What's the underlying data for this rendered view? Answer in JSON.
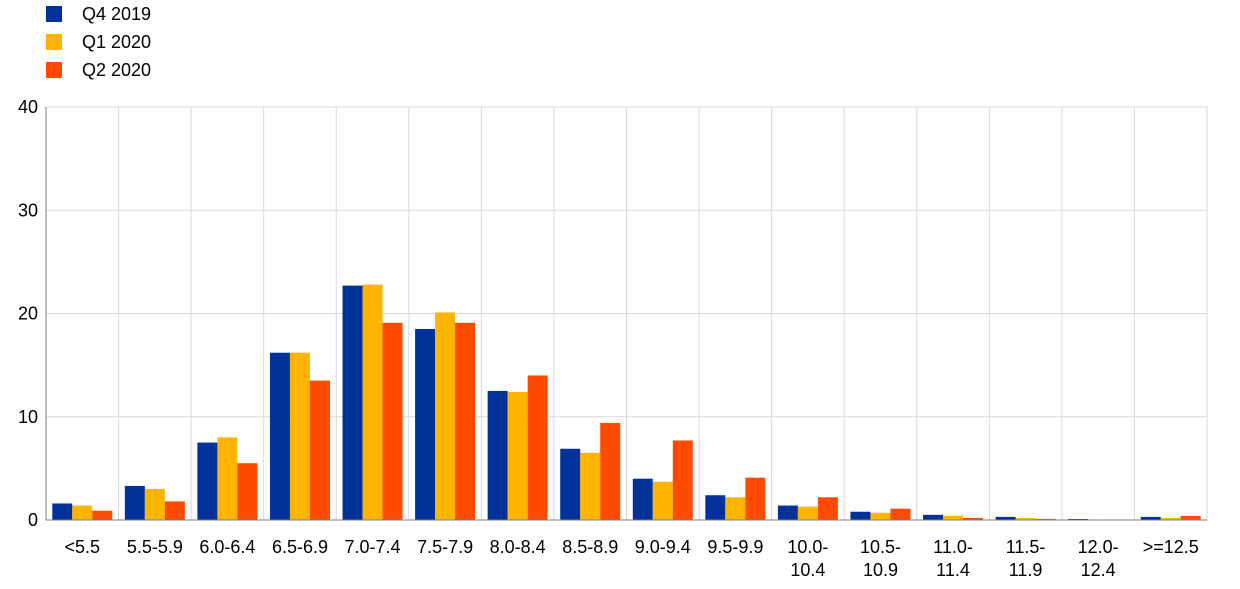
{
  "chart_data": {
    "type": "bar",
    "categories": [
      "<5.5",
      "5.5-5.9",
      "6.0-6.4",
      "6.5-6.9",
      "7.0-7.4",
      "7.5-7.9",
      "8.0-8.4",
      "8.5-8.9",
      "9.0-9.4",
      "9.5-9.9",
      "10.0-\n10.4",
      "10.5-\n10.9",
      "11.0-\n11.4",
      "11.5-\n11.9",
      "12.0-\n12.4",
      ">=12.5"
    ],
    "series": [
      {
        "name": "Q4 2019",
        "color": "#003299",
        "values": [
          1.6,
          3.3,
          7.5,
          16.2,
          22.7,
          18.5,
          12.5,
          6.9,
          4.0,
          2.4,
          1.4,
          0.8,
          0.5,
          0.3,
          0.1,
          0.3
        ]
      },
      {
        "name": "Q1 2020",
        "color": "#FFB400",
        "values": [
          1.4,
          3.0,
          8.0,
          16.2,
          22.8,
          20.1,
          12.4,
          6.5,
          3.7,
          2.2,
          1.3,
          0.7,
          0.4,
          0.2,
          0.05,
          0.2
        ]
      },
      {
        "name": "Q2 2020",
        "color": "#FF4B00",
        "values": [
          0.9,
          1.8,
          5.5,
          13.5,
          19.1,
          19.1,
          14.0,
          9.4,
          7.7,
          4.1,
          2.2,
          1.1,
          0.2,
          0.1,
          0.05,
          0.4
        ]
      }
    ],
    "title": "",
    "xlabel": "",
    "ylabel": "",
    "ylim": [
      0,
      40
    ],
    "yticks": [
      0,
      10,
      20,
      30,
      40
    ],
    "grid": true,
    "legend_position": "top-left"
  }
}
